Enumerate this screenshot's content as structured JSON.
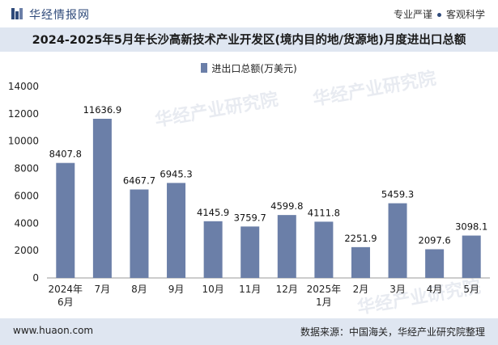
{
  "header": {
    "brand": "华经情报网",
    "tag_left": "专业严谨",
    "tag_right": "客观科学"
  },
  "title": "2024-2025年5月年长沙高新技术产业开发区(境内目的地/货源地)月度进出口总额",
  "legend_label": "进出口总额(万美元)",
  "watermark": {
    "text": "华经产业研究院",
    "url": "www.huaon.com"
  },
  "footer": {
    "site": "www.huaon.com",
    "source": "数据来源：中国海关，华经产业研究院整理"
  },
  "colors": {
    "bar": "#6b7fa8",
    "title_band": "#dfe6f1",
    "brand": "#2f4a7a"
  },
  "chart_data": {
    "type": "bar",
    "categories": [
      "2024年\n6月",
      "7月",
      "8月",
      "9月",
      "10月",
      "11月",
      "12月",
      "2025年\n1月",
      "2月",
      "3月",
      "4月",
      "5月"
    ],
    "series": [
      {
        "name": "进出口总额(万美元)",
        "values": [
          8407.8,
          11636.9,
          6467.7,
          6945.3,
          4145.9,
          3759.7,
          4599.8,
          4111.8,
          2251.9,
          5459.3,
          2097.6,
          3098.1
        ]
      }
    ],
    "ylim": [
      0,
      14000
    ],
    "yticks": [
      0,
      2000,
      4000,
      6000,
      8000,
      10000,
      12000,
      14000
    ],
    "grid": false,
    "legend_position": "top-center"
  }
}
